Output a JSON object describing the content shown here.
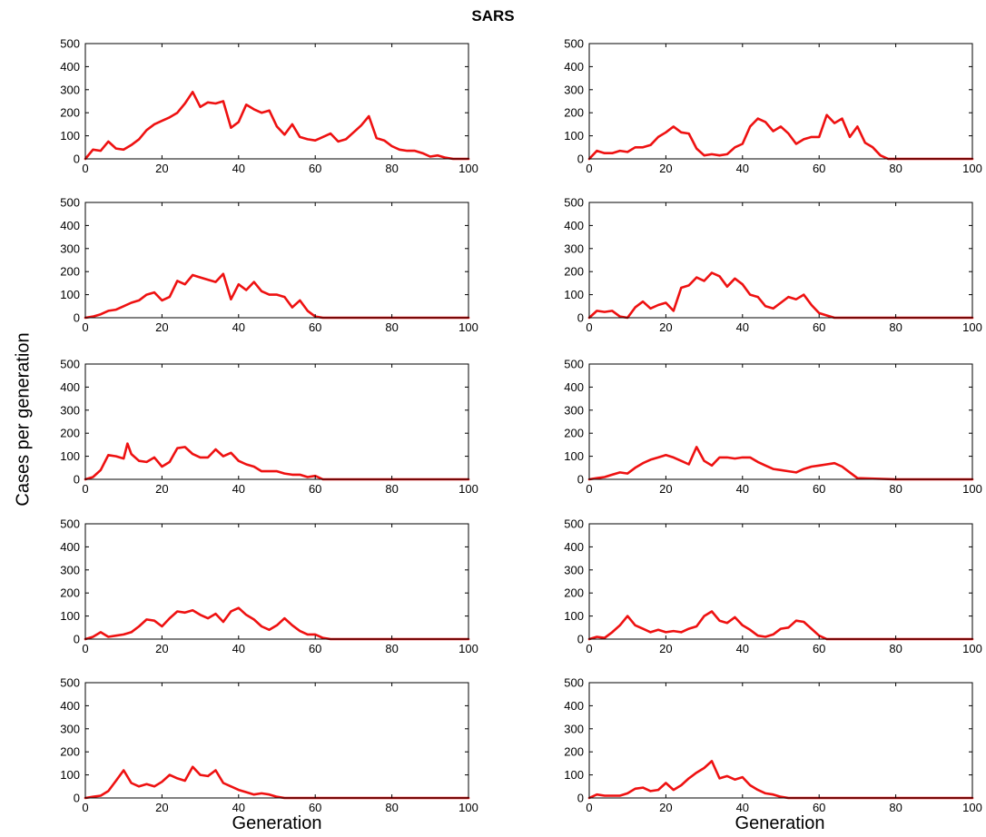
{
  "figure": {
    "title": "SARS",
    "ylabel": "Cases per generation",
    "xlabels": [
      "Generation",
      "Generation"
    ]
  },
  "style": {
    "line_color": "#ee1111",
    "axis_color": "#000000"
  },
  "chart_data": [
    {
      "type": "line",
      "xlim": [
        0,
        100
      ],
      "ylim": [
        0,
        500
      ],
      "xticks": [
        0,
        20,
        40,
        60,
        80,
        100
      ],
      "yticks": [
        0,
        100,
        200,
        300,
        400,
        500
      ],
      "x": [
        0,
        2,
        4,
        6,
        8,
        10,
        12,
        14,
        16,
        18,
        20,
        22,
        24,
        26,
        28,
        30,
        32,
        34,
        36,
        38,
        40,
        42,
        44,
        46,
        48,
        50,
        52,
        54,
        56,
        58,
        60,
        62,
        64,
        66,
        68,
        70,
        72,
        74,
        76,
        78,
        80,
        82,
        84,
        86,
        88,
        90,
        92,
        94,
        96,
        98,
        100
      ],
      "values": [
        0,
        40,
        35,
        75,
        45,
        40,
        60,
        85,
        125,
        150,
        165,
        180,
        200,
        240,
        290,
        225,
        245,
        240,
        250,
        135,
        160,
        235,
        215,
        200,
        210,
        140,
        105,
        150,
        95,
        85,
        80,
        95,
        110,
        75,
        85,
        115,
        145,
        185,
        90,
        80,
        55,
        40,
        35,
        35,
        25,
        10,
        15,
        5,
        0,
        0,
        0
      ]
    },
    {
      "type": "line",
      "xlim": [
        0,
        100
      ],
      "ylim": [
        0,
        500
      ],
      "xticks": [
        0,
        20,
        40,
        60,
        80,
        100
      ],
      "yticks": [
        0,
        100,
        200,
        300,
        400,
        500
      ],
      "x": [
        0,
        2,
        4,
        6,
        8,
        10,
        12,
        14,
        16,
        18,
        20,
        22,
        24,
        26,
        28,
        30,
        32,
        34,
        36,
        38,
        40,
        42,
        44,
        46,
        48,
        50,
        52,
        54,
        56,
        58,
        60,
        62,
        64,
        66,
        68,
        70,
        72,
        74,
        76,
        78,
        80,
        85,
        90,
        95,
        100
      ],
      "values": [
        0,
        35,
        25,
        25,
        35,
        30,
        50,
        50,
        60,
        95,
        115,
        140,
        115,
        110,
        45,
        15,
        20,
        15,
        20,
        50,
        65,
        140,
        175,
        160,
        120,
        140,
        110,
        65,
        85,
        95,
        95,
        190,
        155,
        175,
        95,
        140,
        70,
        50,
        15,
        0,
        0,
        0,
        0,
        0,
        0
      ]
    },
    {
      "type": "line",
      "xlim": [
        0,
        100
      ],
      "ylim": [
        0,
        500
      ],
      "xticks": [
        0,
        20,
        40,
        60,
        80,
        100
      ],
      "yticks": [
        0,
        100,
        200,
        300,
        400,
        500
      ],
      "x": [
        0,
        2,
        4,
        6,
        8,
        10,
        12,
        14,
        16,
        18,
        20,
        22,
        24,
        26,
        28,
        30,
        32,
        34,
        36,
        38,
        40,
        42,
        44,
        46,
        48,
        50,
        52,
        54,
        56,
        58,
        60,
        62,
        64,
        70,
        80,
        90,
        100
      ],
      "values": [
        0,
        5,
        15,
        30,
        35,
        50,
        65,
        75,
        100,
        110,
        75,
        90,
        160,
        145,
        185,
        175,
        165,
        155,
        190,
        80,
        145,
        120,
        155,
        115,
        100,
        100,
        90,
        45,
        75,
        30,
        5,
        0,
        0,
        0,
        0,
        0,
        0
      ]
    },
    {
      "type": "line",
      "xlim": [
        0,
        100
      ],
      "ylim": [
        0,
        500
      ],
      "xticks": [
        0,
        20,
        40,
        60,
        80,
        100
      ],
      "yticks": [
        0,
        100,
        200,
        300,
        400,
        500
      ],
      "x": [
        0,
        2,
        4,
        6,
        8,
        10,
        12,
        14,
        16,
        18,
        20,
        22,
        24,
        26,
        28,
        30,
        32,
        34,
        36,
        38,
        40,
        42,
        44,
        46,
        48,
        50,
        52,
        54,
        56,
        58,
        60,
        62,
        64,
        70,
        80,
        90,
        100
      ],
      "values": [
        0,
        30,
        25,
        30,
        5,
        0,
        45,
        70,
        40,
        55,
        65,
        30,
        130,
        140,
        175,
        160,
        195,
        180,
        135,
        170,
        145,
        100,
        90,
        50,
        40,
        65,
        90,
        80,
        100,
        55,
        20,
        10,
        0,
        0,
        0,
        0,
        0
      ]
    },
    {
      "type": "line",
      "xlim": [
        0,
        100
      ],
      "ylim": [
        0,
        500
      ],
      "xticks": [
        0,
        20,
        40,
        60,
        80,
        100
      ],
      "yticks": [
        0,
        100,
        200,
        300,
        400,
        500
      ],
      "x": [
        0,
        2,
        4,
        6,
        8,
        10,
        11,
        12,
        14,
        16,
        18,
        20,
        22,
        24,
        26,
        28,
        30,
        32,
        34,
        36,
        38,
        40,
        42,
        44,
        46,
        48,
        50,
        52,
        54,
        56,
        58,
        60,
        62,
        64,
        70,
        80,
        90,
        100
      ],
      "values": [
        0,
        10,
        40,
        105,
        100,
        90,
        155,
        110,
        80,
        75,
        95,
        55,
        75,
        135,
        140,
        110,
        95,
        95,
        130,
        100,
        115,
        80,
        65,
        55,
        35,
        35,
        35,
        25,
        20,
        20,
        10,
        15,
        0,
        0,
        0,
        0,
        0,
        0
      ]
    },
    {
      "type": "line",
      "xlim": [
        0,
        100
      ],
      "ylim": [
        0,
        500
      ],
      "xticks": [
        0,
        20,
        40,
        60,
        80,
        100
      ],
      "yticks": [
        0,
        100,
        200,
        300,
        400,
        500
      ],
      "x": [
        0,
        2,
        4,
        6,
        8,
        10,
        12,
        14,
        16,
        18,
        20,
        22,
        24,
        26,
        28,
        30,
        32,
        34,
        36,
        38,
        40,
        42,
        44,
        46,
        48,
        50,
        52,
        54,
        56,
        58,
        60,
        62,
        64,
        66,
        68,
        70,
        80,
        90,
        100
      ],
      "values": [
        0,
        5,
        10,
        20,
        30,
        25,
        50,
        70,
        85,
        95,
        105,
        95,
        80,
        65,
        140,
        80,
        60,
        95,
        95,
        90,
        95,
        95,
        75,
        60,
        45,
        40,
        35,
        30,
        45,
        55,
        60,
        65,
        70,
        55,
        30,
        5,
        0,
        0,
        0
      ]
    },
    {
      "type": "line",
      "xlim": [
        0,
        100
      ],
      "ylim": [
        0,
        500
      ],
      "xticks": [
        0,
        20,
        40,
        60,
        80,
        100
      ],
      "yticks": [
        0,
        100,
        200,
        300,
        400,
        500
      ],
      "x": [
        0,
        2,
        4,
        6,
        8,
        10,
        12,
        14,
        16,
        18,
        20,
        22,
        24,
        26,
        28,
        30,
        32,
        34,
        36,
        38,
        40,
        42,
        44,
        46,
        48,
        50,
        52,
        54,
        56,
        58,
        60,
        62,
        64,
        70,
        80,
        90,
        100
      ],
      "values": [
        0,
        10,
        30,
        10,
        15,
        20,
        30,
        55,
        85,
        80,
        55,
        90,
        120,
        115,
        125,
        105,
        90,
        110,
        75,
        120,
        135,
        105,
        85,
        55,
        40,
        60,
        90,
        60,
        35,
        20,
        20,
        5,
        0,
        0,
        0,
        0,
        0
      ]
    },
    {
      "type": "line",
      "xlim": [
        0,
        100
      ],
      "ylim": [
        0,
        500
      ],
      "xticks": [
        0,
        20,
        40,
        60,
        80,
        100
      ],
      "yticks": [
        0,
        100,
        200,
        300,
        400,
        500
      ],
      "x": [
        0,
        2,
        4,
        6,
        8,
        10,
        12,
        14,
        16,
        18,
        20,
        22,
        24,
        26,
        28,
        30,
        32,
        34,
        36,
        38,
        40,
        42,
        44,
        46,
        48,
        50,
        52,
        54,
        56,
        58,
        60,
        62,
        70,
        80,
        90,
        100
      ],
      "values": [
        0,
        10,
        5,
        30,
        60,
        100,
        60,
        45,
        30,
        40,
        30,
        35,
        30,
        45,
        55,
        100,
        120,
        80,
        70,
        95,
        60,
        40,
        15,
        10,
        20,
        45,
        50,
        80,
        75,
        45,
        15,
        0,
        0,
        0,
        0,
        0
      ]
    },
    {
      "type": "line",
      "xlim": [
        0,
        100
      ],
      "ylim": [
        0,
        500
      ],
      "xticks": [
        0,
        20,
        40,
        60,
        80,
        100
      ],
      "yticks": [
        0,
        100,
        200,
        300,
        400,
        500
      ],
      "x": [
        0,
        2,
        4,
        6,
        8,
        10,
        12,
        14,
        16,
        18,
        20,
        22,
        24,
        26,
        28,
        30,
        32,
        34,
        36,
        38,
        40,
        42,
        44,
        46,
        48,
        50,
        52,
        60,
        70,
        80,
        90,
        100
      ],
      "values": [
        0,
        5,
        10,
        30,
        75,
        120,
        65,
        50,
        60,
        50,
        70,
        100,
        85,
        75,
        135,
        100,
        95,
        120,
        65,
        50,
        35,
        25,
        15,
        20,
        15,
        5,
        0,
        0,
        0,
        0,
        0,
        0
      ]
    },
    {
      "type": "line",
      "xlim": [
        0,
        100
      ],
      "ylim": [
        0,
        500
      ],
      "xticks": [
        0,
        20,
        40,
        60,
        80,
        100
      ],
      "yticks": [
        0,
        100,
        200,
        300,
        400,
        500
      ],
      "x": [
        0,
        2,
        4,
        6,
        8,
        10,
        12,
        14,
        16,
        18,
        20,
        22,
        24,
        26,
        28,
        30,
        32,
        34,
        36,
        38,
        40,
        42,
        44,
        46,
        48,
        50,
        52,
        60,
        70,
        80,
        90,
        100
      ],
      "values": [
        0,
        15,
        10,
        10,
        10,
        20,
        40,
        45,
        30,
        35,
        65,
        35,
        55,
        85,
        110,
        130,
        160,
        85,
        95,
        80,
        90,
        55,
        35,
        20,
        15,
        5,
        0,
        0,
        0,
        0,
        0,
        0
      ]
    }
  ]
}
